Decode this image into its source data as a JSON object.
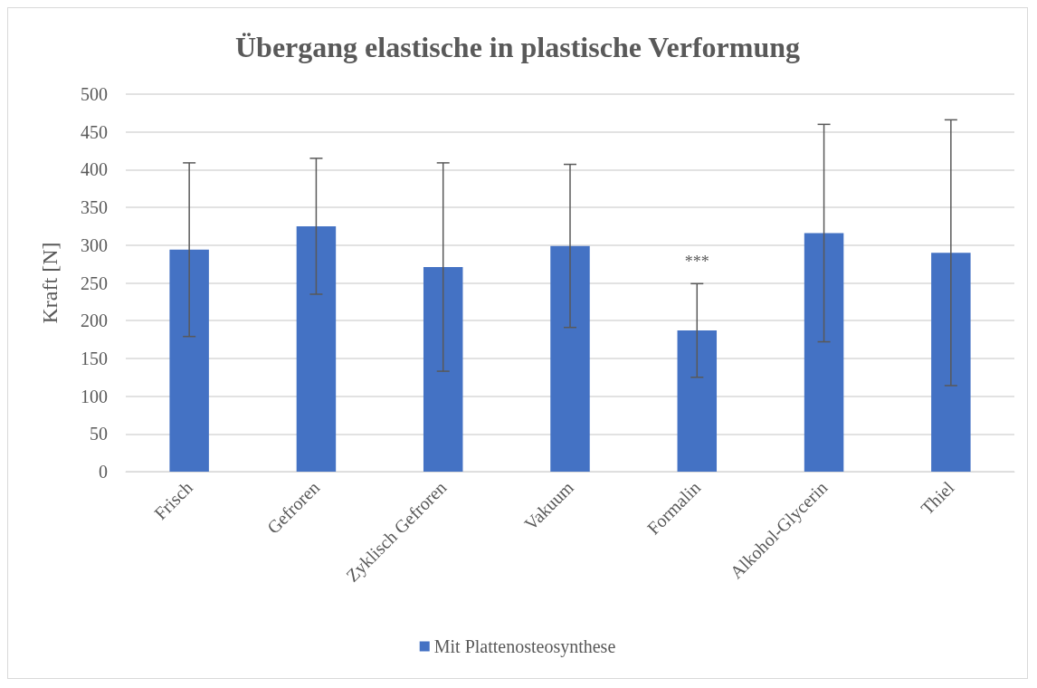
{
  "chart_data": {
    "type": "bar",
    "title": "Übergang elastische in plastische Verformung",
    "ylabel": "Kraft [N]",
    "categories": [
      "Frisch",
      "Gefroren",
      "Zyklisch Gefroren",
      "Vakuum",
      "Formalin",
      "Alkohol-Glycerin",
      "Thiel"
    ],
    "series": [
      {
        "name": "Mit Plattenosteosynthese",
        "color": "#4472c4",
        "values": [
          294,
          325,
          271,
          299,
          187,
          316,
          290
        ],
        "errors": [
          115,
          90,
          138,
          108,
          62,
          144,
          176
        ]
      }
    ],
    "ylim": [
      0,
      500
    ],
    "yticks": [
      0,
      50,
      100,
      150,
      200,
      250,
      300,
      350,
      400,
      450,
      500
    ],
    "grid": "y",
    "legend": "bottom",
    "annotations": [
      {
        "text": "***",
        "x": "Formalin",
        "y": 249
      }
    ]
  }
}
